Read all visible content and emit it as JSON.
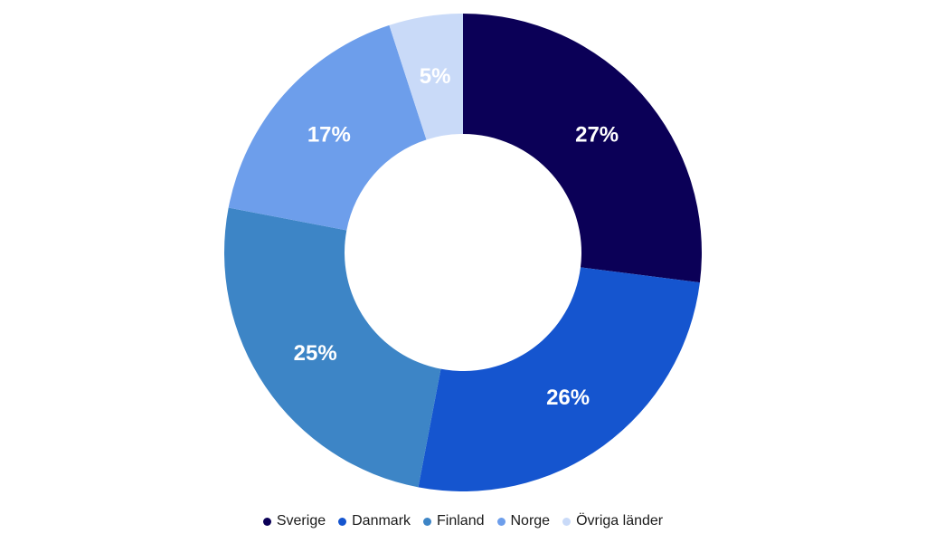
{
  "chart_data": {
    "type": "pie",
    "subtype": "donut",
    "title": "",
    "categories": [
      "Sverige",
      "Danmark",
      "Finland",
      "Norge",
      "Övriga länder"
    ],
    "values": [
      27,
      26,
      25,
      17,
      5
    ],
    "labels": [
      "27%",
      "26%",
      "25%",
      "17%",
      "5%"
    ],
    "colors": [
      "#0b0057",
      "#1555cf",
      "#3d85c6",
      "#6d9eeb",
      "#c9daf8"
    ],
    "unit": "%",
    "start_angle": "12 o'clock, clockwise",
    "legend_position": "bottom"
  },
  "legend": {
    "items": [
      {
        "label": "Sverige",
        "color": "#0b0057"
      },
      {
        "label": "Danmark",
        "color": "#1555cf"
      },
      {
        "label": "Finland",
        "color": "#3d85c6"
      },
      {
        "label": "Norge",
        "color": "#6d9eeb"
      },
      {
        "label": "Övriga länder",
        "color": "#c9daf8"
      }
    ]
  }
}
